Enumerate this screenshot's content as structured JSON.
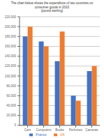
{
  "chart_data": {
    "type": "bar",
    "title": "The chart below shows the expenditure of two countries on\nconsumer goods in 2010\n(pound sterling)",
    "categories": [
      "Cars",
      "Computers",
      "Books",
      "Perfumes",
      "Cameras"
    ],
    "series": [
      {
        "name": "France",
        "color": "#4472c4",
        "values": [
          180000,
          170000,
          130000,
          60000,
          110000
        ]
      },
      {
        "name": "UK",
        "color": "#ed7d31",
        "values": [
          200000,
          160000,
          190000,
          50000,
          120000
        ]
      }
    ],
    "ylim": [
      0,
      220000
    ],
    "yticks": [
      0,
      {
        "value": 20000,
        "label": "20,000"
      },
      {
        "value": 40000,
        "label": "40,000"
      },
      {
        "value": 60000,
        "label": "60,000"
      },
      {
        "value": 80000,
        "label": "80,000"
      },
      {
        "value": 100000,
        "label": "100,000"
      },
      {
        "value": 120000,
        "label": "120,000"
      },
      {
        "value": 140000,
        "label": "140,000"
      },
      {
        "value": 160000,
        "label": "160,000"
      },
      {
        "value": 180000,
        "label": "180,000"
      },
      {
        "value": 200000,
        "label": "200,000"
      },
      {
        "value": 220000,
        "label": "220,000"
      }
    ],
    "grid": true,
    "legend": "bottom"
  }
}
